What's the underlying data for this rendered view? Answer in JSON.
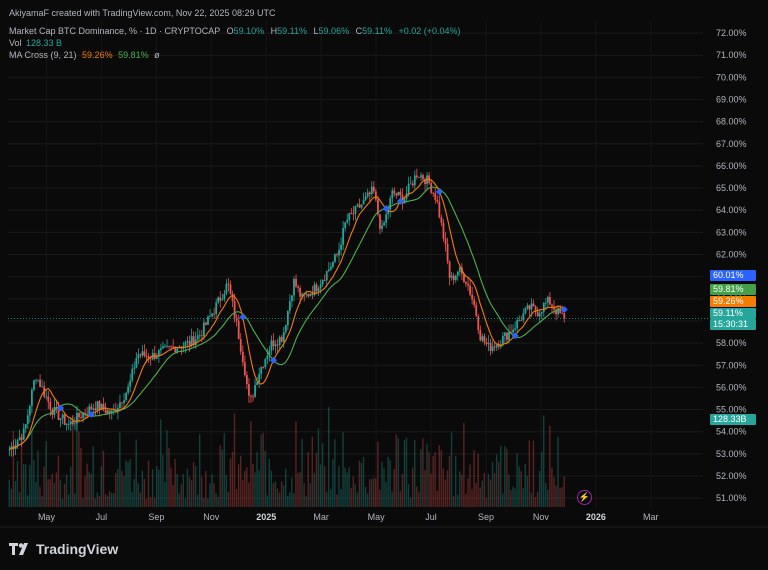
{
  "header": {
    "attribution": "AkiyamaF created with TradingView.com, Nov 22, 2025 08:29 UTC",
    "symbol": "Market Cap BTC Dominance, % · 1D · CRYPTOCAP",
    "o_label": "O",
    "o_value": "59.10%",
    "h_label": "H",
    "h_value": "59.11%",
    "l_label": "L",
    "l_value": "59.06%",
    "c_label": "C",
    "c_value": "59.11%",
    "change": "+0.02 (+0.04%)",
    "vol_label": "Vol",
    "vol_value": "128.33 B",
    "ma_label": "MA Cross (9, 21)",
    "ma_fast_value": "59.26%",
    "ma_slow_value": "59.81%",
    "eye_off_icon": "ø"
  },
  "price_tags": {
    "top": "60.01%",
    "ma_slow": "59.81%",
    "ma_fast": "59.26%",
    "last": "59.11%",
    "countdown": "15:30:31",
    "volume": "128.33B"
  },
  "colors": {
    "background": "#0a0a0a",
    "up": "#26a69a",
    "down": "#ef5350",
    "ma_fast": "#f57c00",
    "ma_slow": "#4caf50",
    "cross_marker": "#2962ff",
    "tag_blue": "#2962ff",
    "tag_green": "#43a047",
    "tag_orange": "#f57c00",
    "tag_teal": "#26a69a"
  },
  "branding": {
    "logo_text": "TradingView",
    "logo_mark": "17"
  },
  "chart_data": {
    "type": "line",
    "title": "Market Cap BTC Dominance, %",
    "y_unit": "%",
    "ylim": [
      50.6,
      72.5
    ],
    "y_ticks": [
      "72.00%",
      "71.00%",
      "70.00%",
      "69.00%",
      "68.00%",
      "67.00%",
      "66.00%",
      "65.00%",
      "64.00%",
      "63.00%",
      "62.00%",
      "61.00%",
      "60.00%",
      "59.00%",
      "58.00%",
      "57.00%",
      "56.00%",
      "55.00%",
      "54.00%",
      "53.00%",
      "52.00%",
      "51.00%"
    ],
    "y_tick_values": [
      72,
      71,
      70,
      69,
      68,
      67,
      66,
      65,
      64,
      63,
      62,
      61,
      60,
      59,
      58,
      57,
      56,
      55,
      54,
      53,
      52,
      51
    ],
    "x_ticks": [
      {
        "label": "May",
        "month": 0
      },
      {
        "label": "Jul",
        "month": 2
      },
      {
        "label": "Sep",
        "month": 4
      },
      {
        "label": "Nov",
        "month": 6
      },
      {
        "label": "2025",
        "month": 8,
        "bold": true
      },
      {
        "label": "Mar",
        "month": 10
      },
      {
        "label": "May",
        "month": 12
      },
      {
        "label": "Jul",
        "month": 14
      },
      {
        "label": "Sep",
        "month": 16
      },
      {
        "label": "Nov",
        "month": 18
      },
      {
        "label": "2026",
        "month": 20,
        "bold": true
      },
      {
        "label": "Mar",
        "month": 22
      }
    ],
    "x_range_months": [
      -1.4,
      23.9
    ],
    "price_keypoints": [
      [
        -1.35,
        53.2
      ],
      [
        -0.8,
        54.0
      ],
      [
        -0.4,
        56.6
      ],
      [
        0.2,
        55.0
      ],
      [
        0.8,
        54.3
      ],
      [
        1.3,
        54.8
      ],
      [
        1.8,
        55.2
      ],
      [
        2.4,
        54.8
      ],
      [
        3.0,
        56.0
      ],
      [
        3.3,
        57.5
      ],
      [
        3.8,
        57.4
      ],
      [
        4.6,
        57.8
      ],
      [
        5.2,
        58.0
      ],
      [
        5.6,
        58.4
      ],
      [
        6.1,
        59.5
      ],
      [
        6.6,
        60.7
      ],
      [
        6.9,
        59.0
      ],
      [
        7.2,
        57.0
      ],
      [
        7.4,
        55.2
      ],
      [
        7.7,
        56.6
      ],
      [
        8.2,
        58.0
      ],
      [
        8.6,
        58.3
      ],
      [
        9.0,
        60.8
      ],
      [
        9.3,
        60.0
      ],
      [
        9.8,
        60.5
      ],
      [
        10.2,
        61.2
      ],
      [
        10.6,
        62.0
      ],
      [
        10.9,
        63.5
      ],
      [
        11.5,
        64.3
      ],
      [
        11.9,
        64.9
      ],
      [
        12.2,
        63.0
      ],
      [
        12.6,
        64.8
      ],
      [
        13.0,
        64.5
      ],
      [
        13.5,
        65.7
      ],
      [
        13.9,
        65.3
      ],
      [
        14.2,
        64.5
      ],
      [
        14.5,
        62.5
      ],
      [
        14.7,
        60.8
      ],
      [
        15.0,
        61.3
      ],
      [
        15.3,
        60.8
      ],
      [
        15.6,
        59.6
      ],
      [
        15.8,
        58.3
      ],
      [
        16.1,
        57.8
      ],
      [
        16.4,
        58.0
      ],
      [
        16.7,
        58.3
      ],
      [
        17.0,
        58.7
      ],
      [
        17.3,
        59.2
      ],
      [
        17.6,
        59.6
      ],
      [
        17.9,
        59.4
      ],
      [
        18.1,
        59.7
      ],
      [
        18.3,
        59.9
      ],
      [
        18.6,
        59.4
      ],
      [
        18.85,
        59.11
      ]
    ],
    "volume_unit": "B",
    "volume_last": 128.33,
    "series": [
      {
        "name": "MA Cross (9, 21)"
      }
    ]
  }
}
